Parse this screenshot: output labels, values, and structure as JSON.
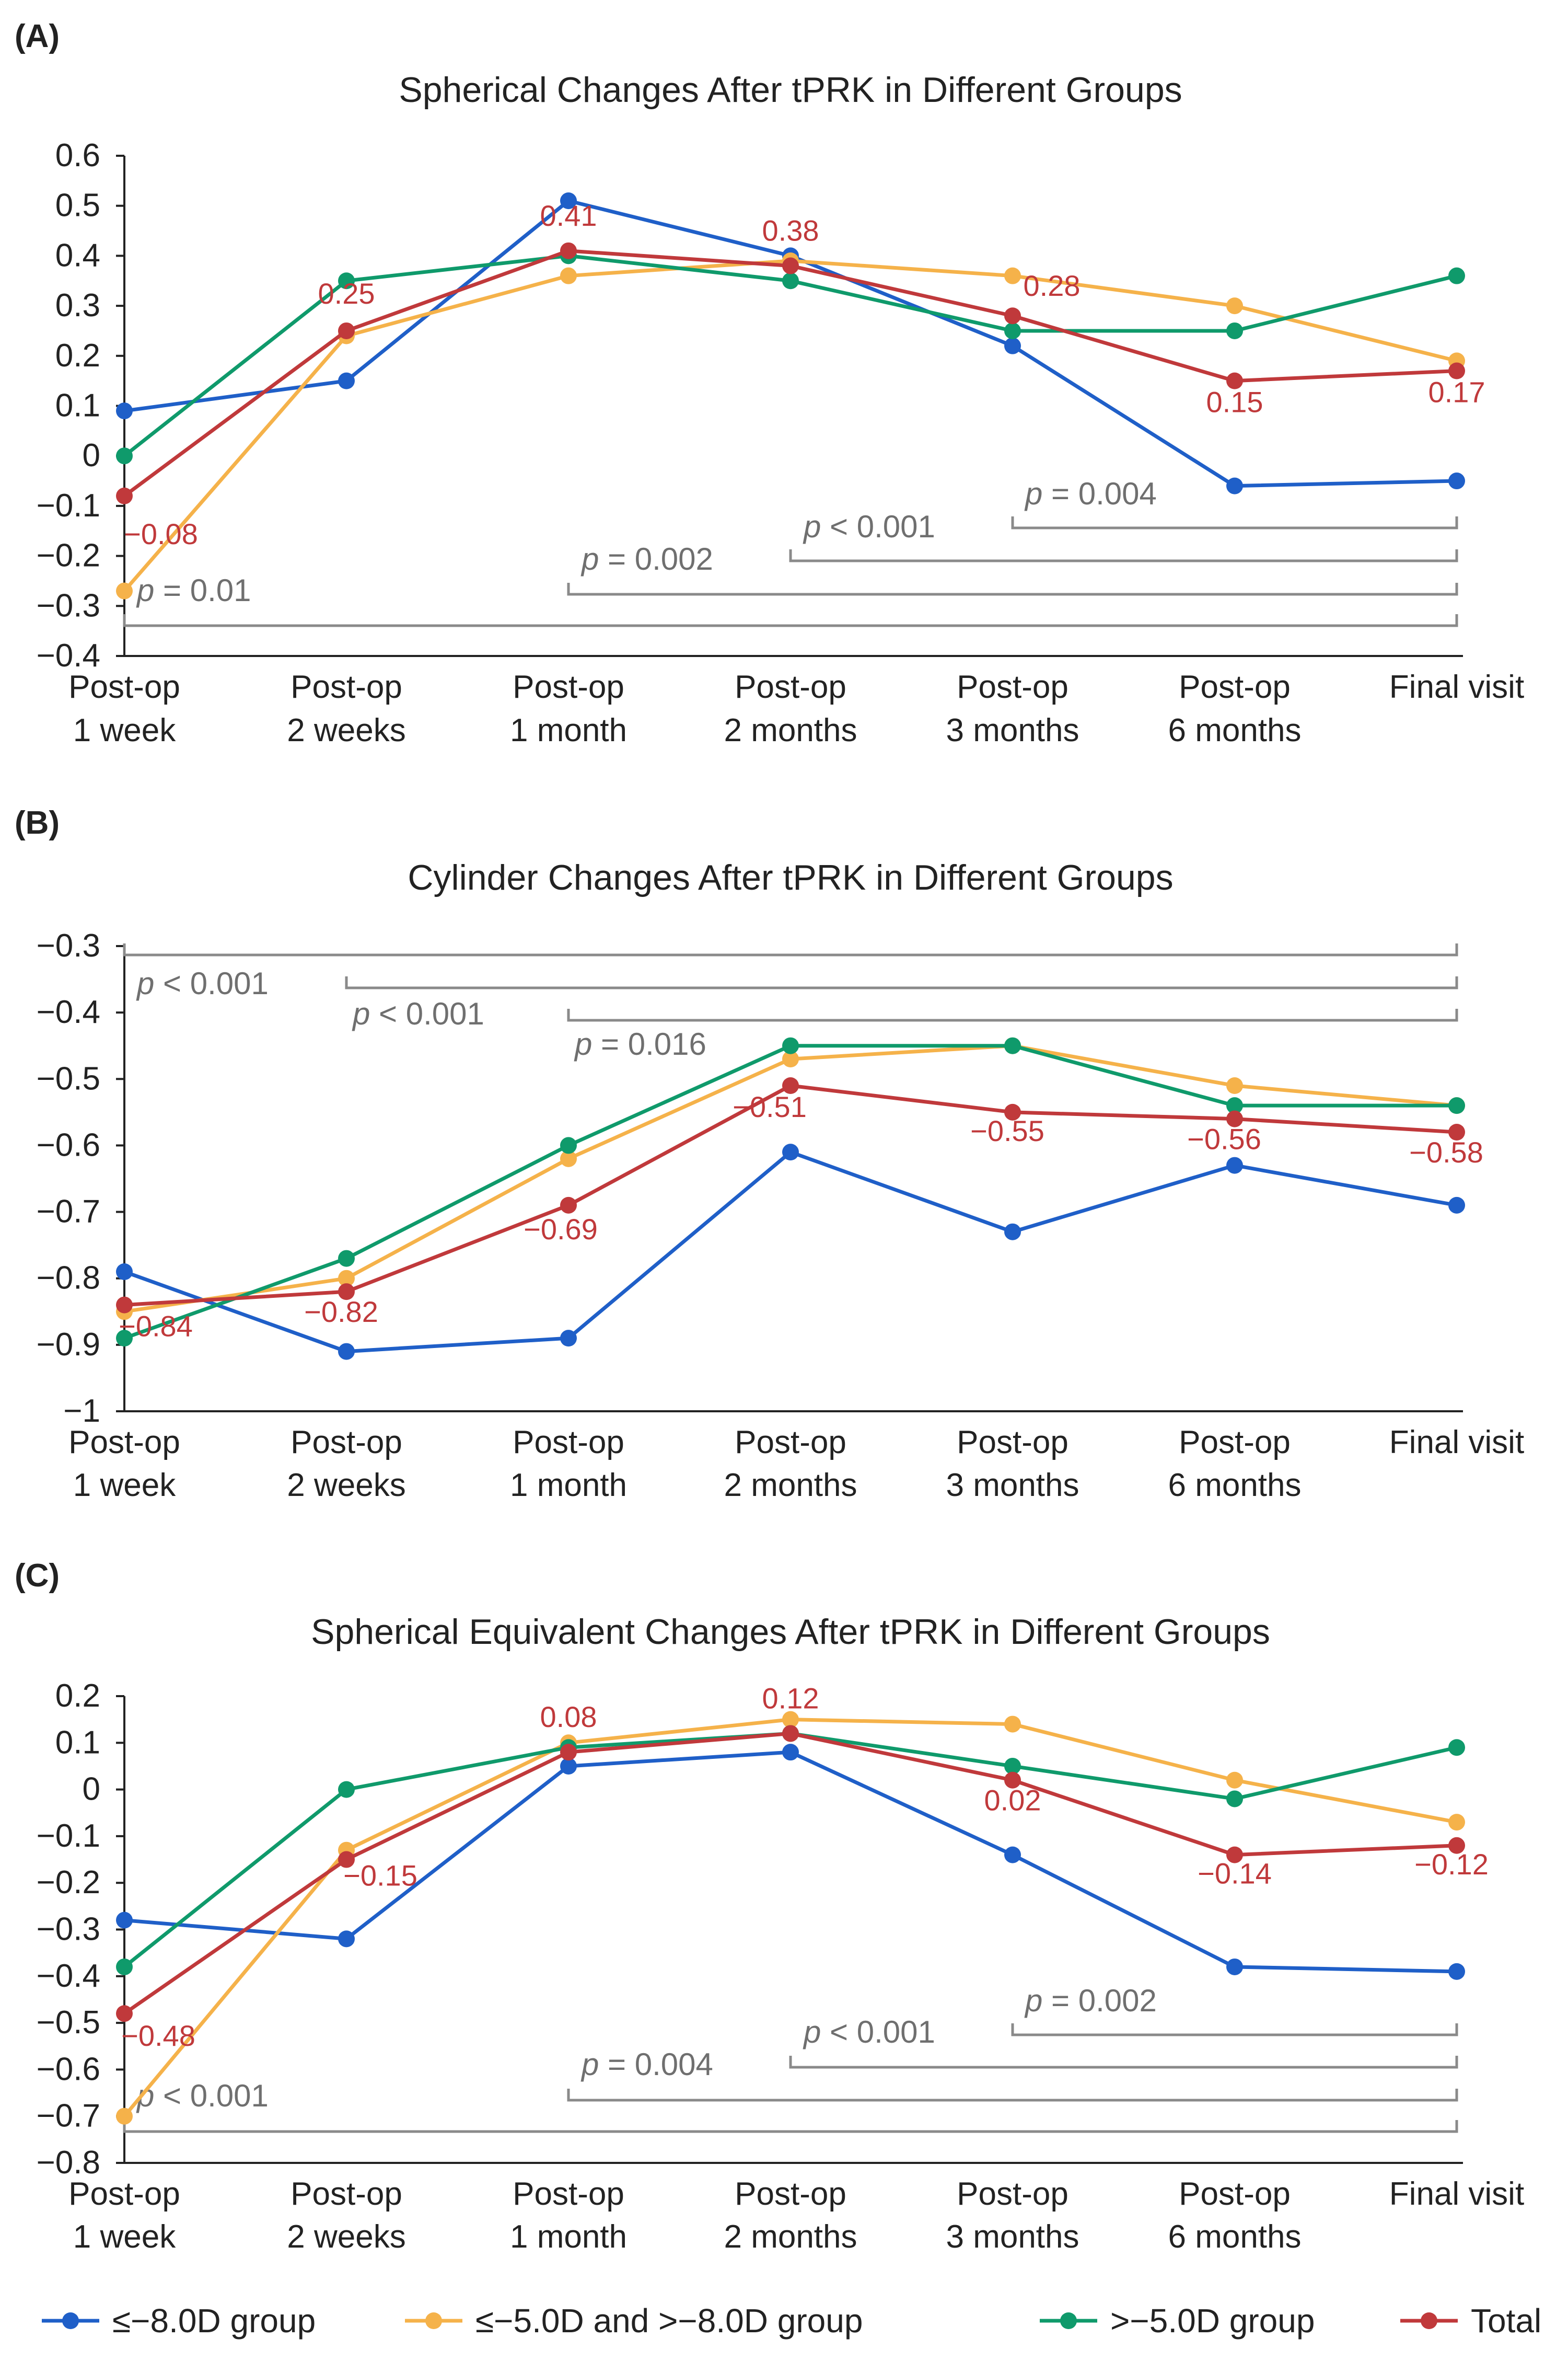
{
  "chart_data": [
    {
      "type": "line",
      "panel_label": "(A)",
      "title": "Spherical Changes After tPRK in Different Groups",
      "categories": [
        [
          "Post-op",
          "1 week"
        ],
        [
          "Post-op",
          "2 weeks"
        ],
        [
          "Post-op",
          "1 month"
        ],
        [
          "Post-op",
          "2 months"
        ],
        [
          "Post-op",
          "3 months"
        ],
        [
          "Post-op",
          "6 months"
        ],
        [
          "Final visit"
        ]
      ],
      "ylim": [
        -0.4,
        0.6
      ],
      "yticks": [
        0.6,
        0.5,
        0.4,
        0.3,
        0.2,
        0.1,
        0,
        -0.1,
        -0.2,
        -0.3,
        -0.4
      ],
      "ytick_labels": [
        "0.6",
        "0.5",
        "0.4",
        "0.3",
        "0.2",
        "0.1",
        "0",
        "−0.1",
        "−0.2",
        "−0.3",
        "−0.4"
      ],
      "series": [
        {
          "key": "le8",
          "values": [
            0.09,
            0.15,
            0.51,
            0.4,
            0.22,
            -0.06,
            -0.05
          ]
        },
        {
          "key": "mid",
          "values": [
            -0.27,
            0.24,
            0.36,
            0.39,
            0.36,
            0.3,
            0.19
          ]
        },
        {
          "key": "gt5",
          "values": [
            0.0,
            0.35,
            0.4,
            0.35,
            0.25,
            0.25,
            0.36
          ]
        },
        {
          "key": "total",
          "values": [
            -0.08,
            0.25,
            0.41,
            0.38,
            0.28,
            0.15,
            0.17
          ]
        }
      ],
      "data_labels": [
        {
          "index": 0,
          "text": "−0.08"
        },
        {
          "index": 1,
          "text": "0.25"
        },
        {
          "index": 2,
          "text": "0.41"
        },
        {
          "index": 3,
          "text": "0.38"
        },
        {
          "index": 4,
          "text": "0.28"
        },
        {
          "index": 5,
          "text": "0.15"
        },
        {
          "index": 6,
          "text": "0.17"
        }
      ],
      "significance": [
        {
          "from": 4,
          "to": 6,
          "p": "= 0.004"
        },
        {
          "from": 3,
          "to": 6,
          "p": "< 0.001"
        },
        {
          "from": 2,
          "to": 6,
          "p": "= 0.002"
        },
        {
          "from": 0,
          "to": 6,
          "p": "= 0.01"
        }
      ]
    },
    {
      "type": "line",
      "panel_label": "(B)",
      "title": "Cylinder Changes After tPRK in Different Groups",
      "categories": [
        [
          "Post-op",
          "1 week"
        ],
        [
          "Post-op",
          "2 weeks"
        ],
        [
          "Post-op",
          "1 month"
        ],
        [
          "Post-op",
          "2 months"
        ],
        [
          "Post-op",
          "3 months"
        ],
        [
          "Post-op",
          "6 months"
        ],
        [
          "Final visit"
        ]
      ],
      "ylim": [
        -1.0,
        -0.3
      ],
      "yticks": [
        -0.3,
        -0.4,
        -0.5,
        -0.6,
        -0.7,
        -0.8,
        -0.9,
        -1
      ],
      "ytick_labels": [
        "−0.3",
        "−0.4",
        "−0.5",
        "−0.6",
        "−0.7",
        "−0.8",
        "−0.9",
        "−1"
      ],
      "series": [
        {
          "key": "le8",
          "values": [
            -0.79,
            -0.91,
            -0.89,
            -0.61,
            -0.73,
            -0.63,
            -0.69
          ]
        },
        {
          "key": "mid",
          "values": [
            -0.85,
            -0.8,
            -0.62,
            -0.47,
            -0.45,
            -0.51,
            -0.54
          ]
        },
        {
          "key": "gt5",
          "values": [
            -0.89,
            -0.77,
            -0.6,
            -0.45,
            -0.45,
            -0.54,
            -0.54
          ]
        },
        {
          "key": "total",
          "values": [
            -0.84,
            -0.82,
            -0.69,
            -0.51,
            -0.55,
            -0.56,
            -0.58
          ]
        }
      ],
      "data_labels": [
        {
          "index": 0,
          "text": "−0.84"
        },
        {
          "index": 1,
          "text": "−0.82"
        },
        {
          "index": 2,
          "text": "−0.69"
        },
        {
          "index": 3,
          "text": "−0.51"
        },
        {
          "index": 4,
          "text": "−0.55"
        },
        {
          "index": 5,
          "text": "−0.56"
        },
        {
          "index": 6,
          "text": "−0.58"
        }
      ],
      "significance": [
        {
          "from": 0,
          "to": 6,
          "p": "< 0.001"
        },
        {
          "from": 1,
          "to": 6,
          "p": "< 0.001"
        },
        {
          "from": 2,
          "to": 6,
          "p": "= 0.016"
        }
      ]
    },
    {
      "type": "line",
      "panel_label": "(C)",
      "title": "Spherical Equivalent Changes After tPRK in Different Groups",
      "categories": [
        [
          "Post-op",
          "1 week"
        ],
        [
          "Post-op",
          "2 weeks"
        ],
        [
          "Post-op",
          "1 month"
        ],
        [
          "Post-op",
          "2 months"
        ],
        [
          "Post-op",
          "3 months"
        ],
        [
          "Post-op",
          "6 months"
        ],
        [
          "Final visit"
        ]
      ],
      "ylim": [
        -0.8,
        0.2
      ],
      "yticks": [
        0.2,
        0.1,
        0,
        -0.1,
        -0.2,
        -0.3,
        -0.4,
        -0.5,
        -0.6,
        -0.7,
        -0.8
      ],
      "ytick_labels": [
        "0.2",
        "0.1",
        "0",
        "−0.1",
        "−0.2",
        "−0.3",
        "−0.4",
        "−0.5",
        "−0.6",
        "−0.7",
        "−0.8"
      ],
      "series": [
        {
          "key": "le8",
          "values": [
            -0.28,
            -0.32,
            0.05,
            0.08,
            -0.14,
            -0.38,
            -0.39
          ]
        },
        {
          "key": "mid",
          "values": [
            -0.7,
            -0.13,
            0.1,
            0.15,
            0.14,
            0.02,
            -0.07
          ]
        },
        {
          "key": "gt5",
          "values": [
            -0.38,
            0.0,
            0.09,
            0.12,
            0.05,
            -0.02,
            0.09
          ]
        },
        {
          "key": "total",
          "values": [
            -0.48,
            -0.15,
            0.08,
            0.12,
            0.02,
            -0.14,
            -0.12
          ]
        }
      ],
      "data_labels": [
        {
          "index": 0,
          "text": "−0.48"
        },
        {
          "index": 1,
          "text": "−0.15"
        },
        {
          "index": 2,
          "text": "0.08"
        },
        {
          "index": 3,
          "text": "0.12"
        },
        {
          "index": 4,
          "text": "0.02"
        },
        {
          "index": 5,
          "text": "−0.14"
        },
        {
          "index": 6,
          "text": "−0.12"
        }
      ],
      "significance": [
        {
          "from": 4,
          "to": 6,
          "p": "= 0.002"
        },
        {
          "from": 3,
          "to": 6,
          "p": "< 0.001"
        },
        {
          "from": 2,
          "to": 6,
          "p": "= 0.004"
        },
        {
          "from": 0,
          "to": 6,
          "p": "< 0.001"
        }
      ]
    }
  ],
  "p_symbol": "p",
  "legend": {
    "placement": "bottom",
    "items": [
      {
        "key": "le8",
        "label": "≤−8.0D group",
        "color": "#1f5fc8"
      },
      {
        "key": "mid",
        "label": "≤−5.0D and >−8.0D group",
        "color": "#f5b24a"
      },
      {
        "key": "gt5",
        "label": ">−5.0D group",
        "color": "#0f9a6b"
      },
      {
        "key": "total",
        "label": "Total",
        "color": "#c0393b"
      }
    ]
  },
  "colors": {
    "le8": "#1f5fc8",
    "mid": "#f5b24a",
    "gt5": "#0f9a6b",
    "total": "#c0393b",
    "axis": "#222222",
    "bracket": "#8a8a8a",
    "bracket_text": "#6f6f6f",
    "label_text": "#c0393b"
  }
}
